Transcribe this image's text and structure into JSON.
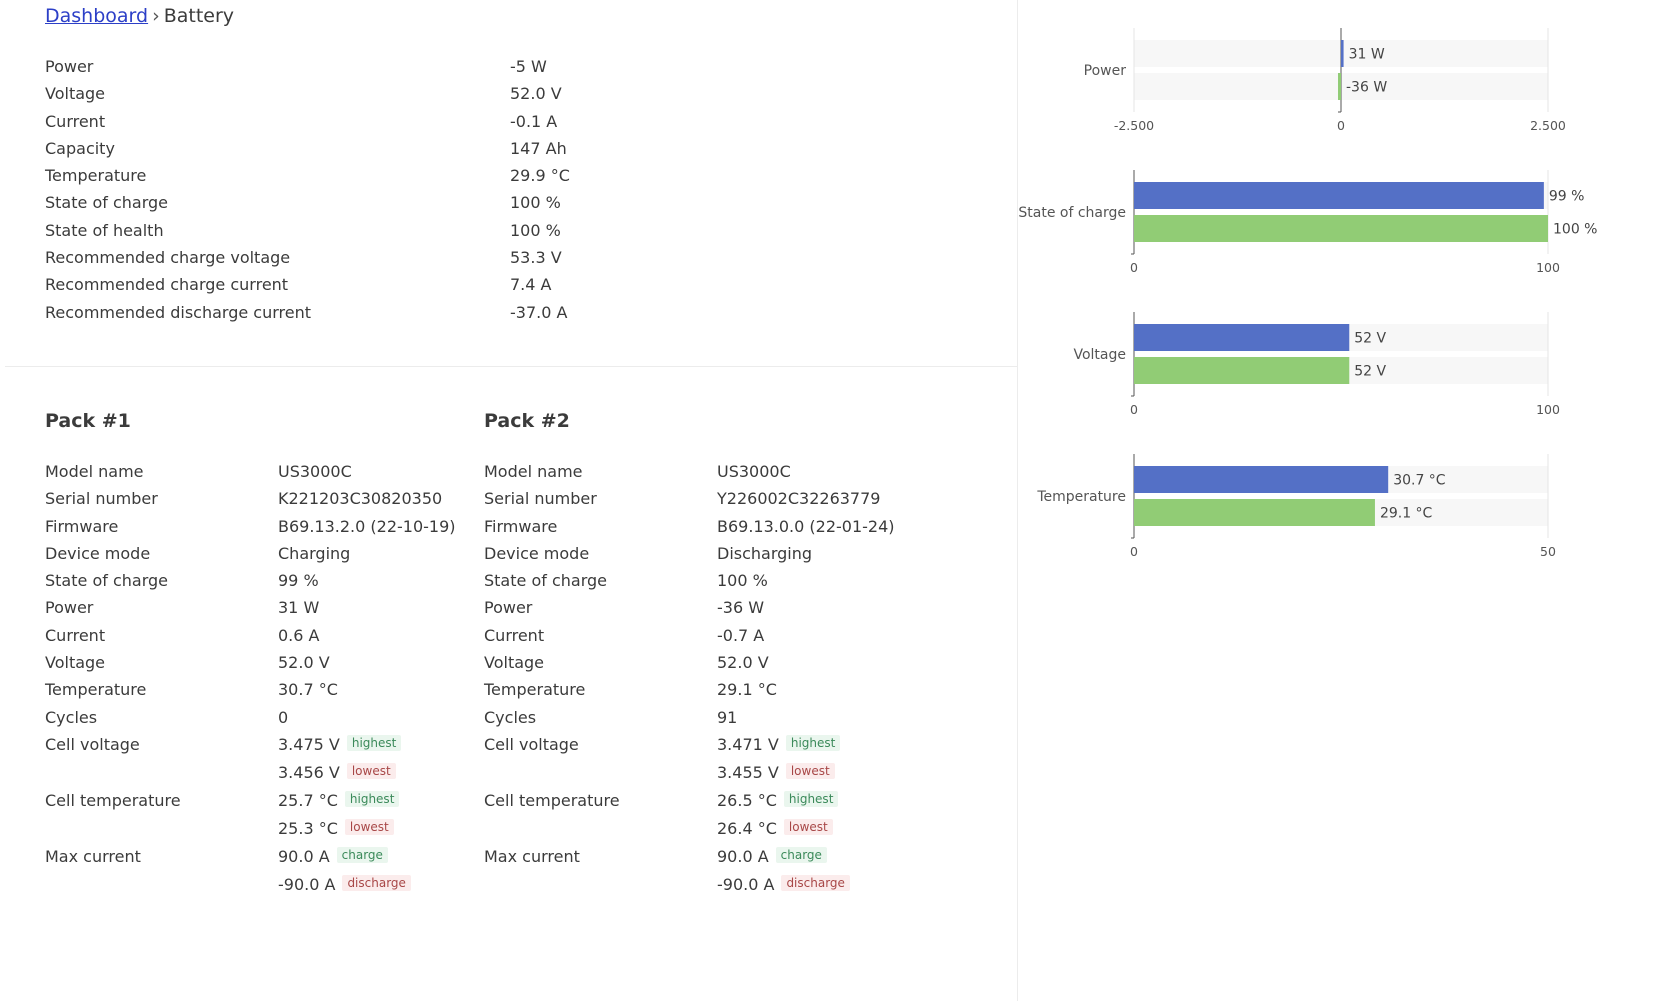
{
  "breadcrumb": {
    "link": "Dashboard",
    "separator": "›",
    "current": "Battery"
  },
  "summary": [
    {
      "label": "Power",
      "value": "-5 W"
    },
    {
      "label": "Voltage",
      "value": "52.0 V"
    },
    {
      "label": "Current",
      "value": "-0.1 A"
    },
    {
      "label": "Capacity",
      "value": "147 Ah"
    },
    {
      "label": "Temperature",
      "value": "29.9 °C"
    },
    {
      "label": "State of charge",
      "value": "100 %"
    },
    {
      "label": "State of health",
      "value": "100 %"
    },
    {
      "label": "Recommended charge voltage",
      "value": "53.3 V"
    },
    {
      "label": "Recommended charge current",
      "value": "7.4 A"
    },
    {
      "label": "Recommended discharge current",
      "value": "-37.0 A"
    }
  ],
  "tags": {
    "highest": "highest",
    "lowest": "lowest",
    "charge": "charge",
    "discharge": "discharge"
  },
  "packs": [
    {
      "title": "Pack #1",
      "rows": [
        {
          "label": "Model name",
          "value": "US3000C"
        },
        {
          "label": "Serial number",
          "value": "K221203C30820350"
        },
        {
          "label": "Firmware",
          "value": "B69.13.2.0 (22-10-19)"
        },
        {
          "label": "Device mode",
          "value": "Charging"
        },
        {
          "label": "State of charge",
          "value": "99 %"
        },
        {
          "label": "Power",
          "value": "31 W"
        },
        {
          "label": "Current",
          "value": "0.6 A"
        },
        {
          "label": "Voltage",
          "value": "52.0 V"
        },
        {
          "label": "Temperature",
          "value": "30.7 °C"
        },
        {
          "label": "Cycles",
          "value": "0"
        }
      ],
      "cell_voltage": {
        "label": "Cell voltage",
        "highest": "3.475 V",
        "lowest": "3.456 V"
      },
      "cell_temperature": {
        "label": "Cell temperature",
        "highest": "25.7 °C",
        "lowest": "25.3 °C"
      },
      "max_current": {
        "label": "Max current",
        "charge": "90.0 A",
        "discharge": "-90.0 A"
      }
    },
    {
      "title": "Pack #2",
      "rows": [
        {
          "label": "Model name",
          "value": "US3000C"
        },
        {
          "label": "Serial number",
          "value": "Y226002C32263779"
        },
        {
          "label": "Firmware",
          "value": "B69.13.0.0 (22-01-24)"
        },
        {
          "label": "Device mode",
          "value": "Discharging"
        },
        {
          "label": "State of charge",
          "value": "100 %"
        },
        {
          "label": "Power",
          "value": "-36 W"
        },
        {
          "label": "Current",
          "value": "-0.7 A"
        },
        {
          "label": "Voltage",
          "value": "52.0 V"
        },
        {
          "label": "Temperature",
          "value": "29.1 °C"
        },
        {
          "label": "Cycles",
          "value": "91"
        }
      ],
      "cell_voltage": {
        "label": "Cell voltage",
        "highest": "3.471 V",
        "lowest": "3.455 V"
      },
      "cell_temperature": {
        "label": "Cell temperature",
        "highest": "26.5 °C",
        "lowest": "26.4 °C"
      },
      "max_current": {
        "label": "Max current",
        "charge": "90.0 A",
        "discharge": "-90.0 A"
      }
    }
  ],
  "chart_data": [
    {
      "type": "bar",
      "orientation": "horizontal",
      "category": "Power",
      "xlim": [
        -2500,
        2500
      ],
      "ticks": [
        "-2.500",
        "0",
        "2.500"
      ],
      "series": [
        {
          "values": [
            31
          ],
          "labels": [
            "31 W"
          ],
          "color": "#5470c6"
        },
        {
          "values": [
            -36
          ],
          "labels": [
            "-36 W"
          ],
          "color": "#91cc75"
        }
      ]
    },
    {
      "type": "bar",
      "orientation": "horizontal",
      "category": "State of charge",
      "xlim": [
        0,
        100
      ],
      "ticks": [
        "0",
        "100"
      ],
      "series": [
        {
          "values": [
            99
          ],
          "labels": [
            "99 %"
          ],
          "color": "#5470c6"
        },
        {
          "values": [
            100
          ],
          "labels": [
            "100 %"
          ],
          "color": "#91cc75"
        }
      ]
    },
    {
      "type": "bar",
      "orientation": "horizontal",
      "category": "Voltage",
      "xlim": [
        0,
        100
      ],
      "ticks": [
        "0",
        "100"
      ],
      "series": [
        {
          "values": [
            52
          ],
          "labels": [
            "52 V"
          ],
          "color": "#5470c6"
        },
        {
          "values": [
            52
          ],
          "labels": [
            "52 V"
          ],
          "color": "#91cc75"
        }
      ]
    },
    {
      "type": "bar",
      "orientation": "horizontal",
      "category": "Temperature",
      "xlim": [
        0,
        50
      ],
      "ticks": [
        "0",
        "50"
      ],
      "series": [
        {
          "values": [
            30.7
          ],
          "labels": [
            "30.7 °C"
          ],
          "color": "#5470c6"
        },
        {
          "values": [
            29.1
          ],
          "labels": [
            "29.1 °C"
          ],
          "color": "#91cc75"
        }
      ]
    }
  ]
}
